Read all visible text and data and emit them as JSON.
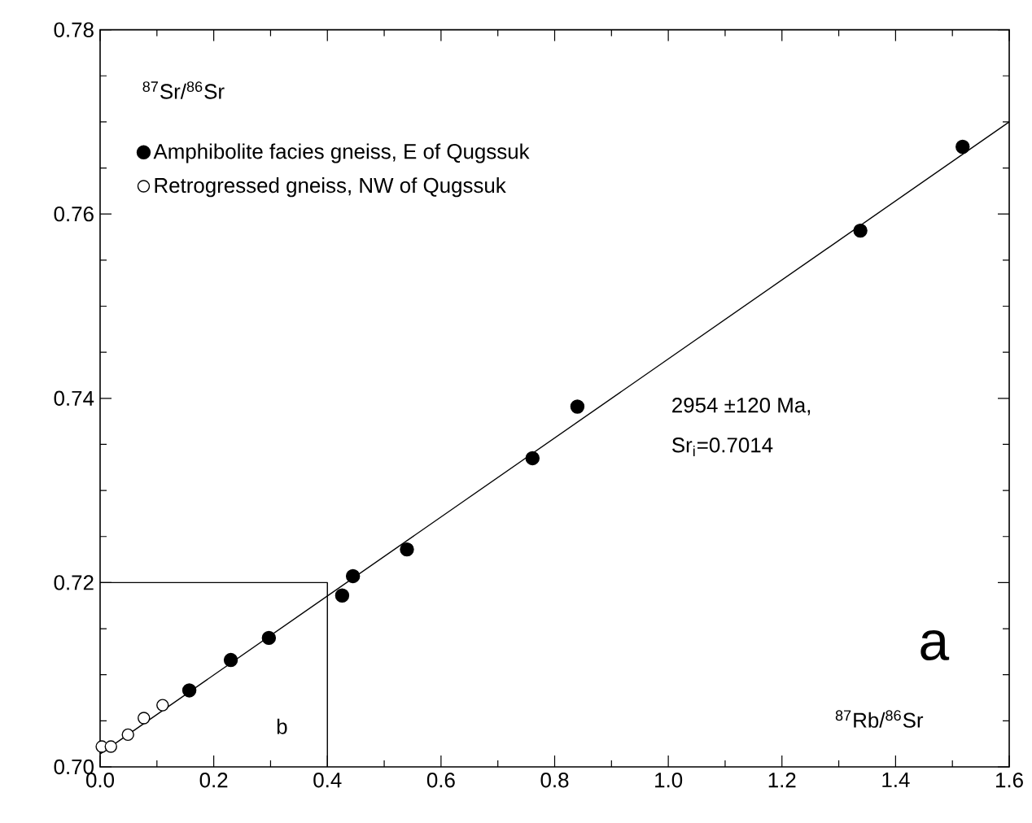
{
  "chart_data": {
    "type": "scatter",
    "xlabel": "$^{87}$Rb/$^{86}$Sr",
    "ylabel": "$^{87}$Sr/$^{86}$Sr",
    "xlim": [
      0,
      1.6
    ],
    "ylim": [
      0.7,
      0.78
    ],
    "xticks": [
      {
        "value": 0,
        "label": "0.0"
      },
      0.2,
      0.4,
      0.6,
      0.8,
      {
        "value": 1,
        "label": "1.0"
      },
      1.2,
      1.4,
      1.6
    ],
    "yticks": [
      {
        "value": 0.7,
        "label": "0.70"
      },
      0.72,
      0.74,
      0.76,
      0.78
    ],
    "legend": "top left",
    "grid": false,
    "series": [
      {
        "name": "Amphibolite facies gneiss, E of Qugssuk",
        "color": "#000000",
        "x": [
          0.157,
          0.23,
          0.297,
          0.426,
          0.445,
          0.54,
          0.761,
          0.84,
          1.338,
          1.518
        ],
        "values": [
          0.7083,
          0.7116,
          0.714,
          0.7186,
          0.7207,
          0.7236,
          0.7335,
          0.7391,
          0.7582,
          0.7673
        ]
      },
      {
        "name": "Retrogressed gneiss, NW of Qugssuk",
        "color": "#ffffff",
        "x": [
          0.003,
          0.019,
          0.049,
          0.077,
          0.11
        ],
        "values": [
          0.7022,
          0.7022,
          0.7035,
          0.7053,
          0.7067
        ]
      },
      {
        "type": "line",
        "color": "#000000",
        "x": [
          0,
          1.6
        ],
        "values": [
          0.7014,
          0.77
        ]
      },
      {
        "type": "line",
        "color": "#000000",
        "x": [
          0,
          0.4,
          0.4
        ],
        "values": [
          0.72,
          0.72,
          0.7
        ]
      }
    ],
    "annotations": [
      "a",
      "2954 ±120 Ma,",
      "Sr$_{i}$=0.7014",
      "b"
    ]
  }
}
